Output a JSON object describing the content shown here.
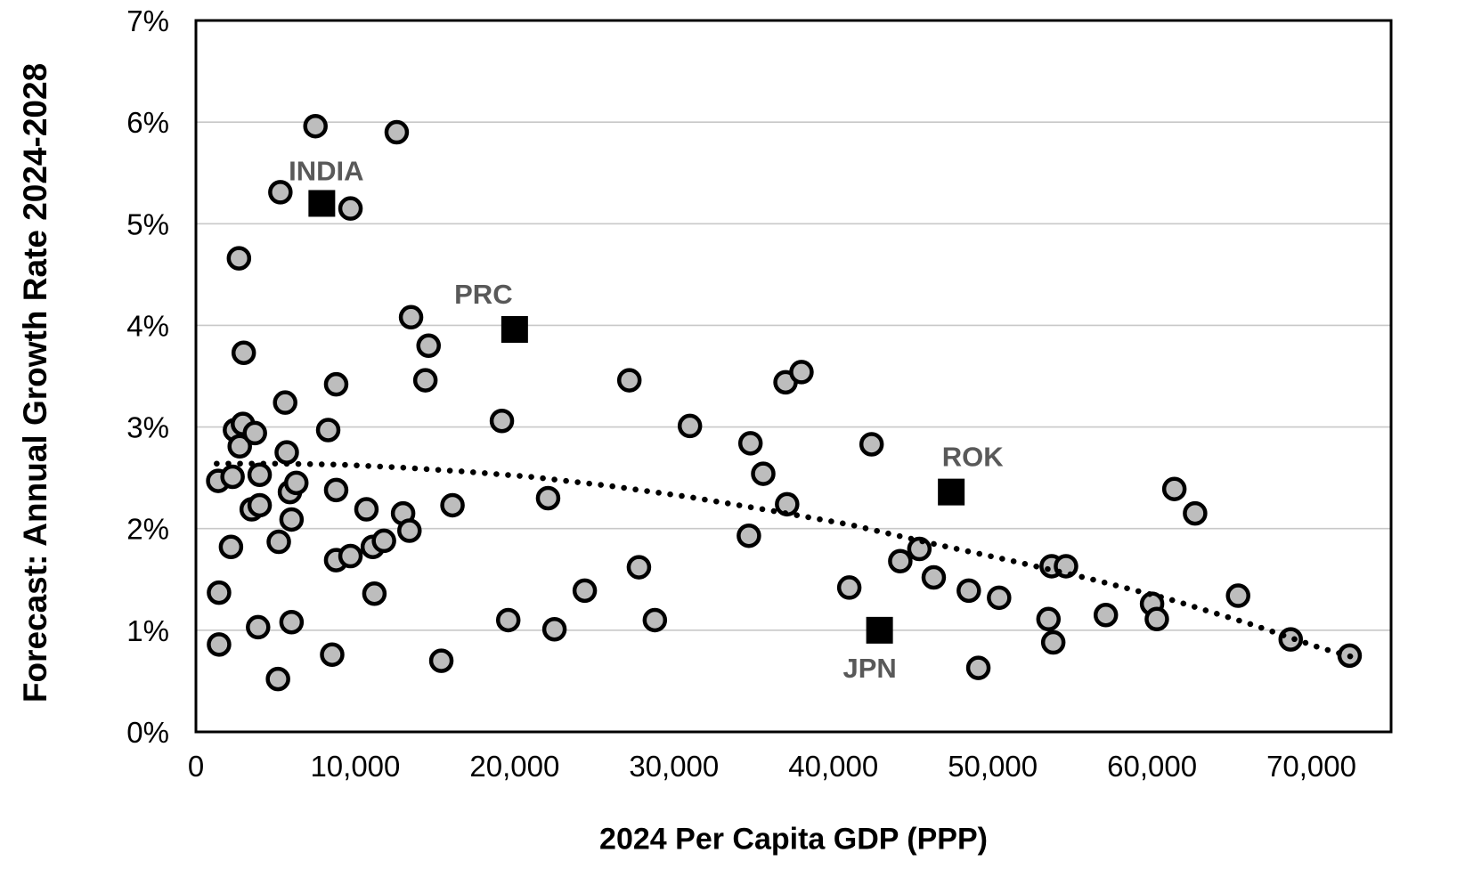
{
  "chart_data": {
    "type": "scatter",
    "title": "",
    "xlabel": "2024 Per Capita GDP (PPP)",
    "ylabel": "Forecast: Annual Growth Rate 2024-2028",
    "xlim": [
      0,
      75000
    ],
    "ylim": [
      0,
      7
    ],
    "grid": "horizontal-only",
    "legend": "none",
    "x_ticks": [
      {
        "value": 0,
        "label": "0"
      },
      {
        "value": 10000,
        "label": "10,000"
      },
      {
        "value": 20000,
        "label": "20,000"
      },
      {
        "value": 30000,
        "label": "30,000"
      },
      {
        "value": 40000,
        "label": "40,000"
      },
      {
        "value": 50000,
        "label": "50,000"
      },
      {
        "value": 60000,
        "label": "60,000"
      },
      {
        "value": 70000,
        "label": "70,000"
      }
    ],
    "y_ticks": [
      {
        "value": 0,
        "label": "0%"
      },
      {
        "value": 1,
        "label": "1%"
      },
      {
        "value": 2,
        "label": "2%"
      },
      {
        "value": 3,
        "label": "3%"
      },
      {
        "value": 4,
        "label": "4%"
      },
      {
        "value": 5,
        "label": "5%"
      },
      {
        "value": 6,
        "label": "6%"
      },
      {
        "value": 7,
        "label": "7%"
      }
    ],
    "series": [
      {
        "name": "economies",
        "marker": "circle",
        "fill": "#bdbdbd",
        "stroke": "#000000",
        "points": [
          [
            1400,
            2.47
          ],
          [
            1450,
            1.37
          ],
          [
            1450,
            0.86
          ],
          [
            2200,
            1.82
          ],
          [
            2300,
            2.51
          ],
          [
            2450,
            2.97
          ],
          [
            2700,
            4.66
          ],
          [
            2750,
            2.81
          ],
          [
            2950,
            3.03
          ],
          [
            3000,
            3.73
          ],
          [
            3500,
            2.19
          ],
          [
            3700,
            2.94
          ],
          [
            3900,
            1.03
          ],
          [
            4000,
            2.53
          ],
          [
            4000,
            2.23
          ],
          [
            5150,
            0.52
          ],
          [
            5200,
            1.87
          ],
          [
            5300,
            5.31
          ],
          [
            5600,
            3.24
          ],
          [
            5700,
            2.75
          ],
          [
            5900,
            2.36
          ],
          [
            6000,
            2.09
          ],
          [
            6000,
            1.08
          ],
          [
            6300,
            2.45
          ],
          [
            7500,
            5.96
          ],
          [
            8300,
            2.97
          ],
          [
            8550,
            0.76
          ],
          [
            8800,
            3.42
          ],
          [
            8800,
            2.38
          ],
          [
            8800,
            1.69
          ],
          [
            9700,
            5.15
          ],
          [
            9700,
            1.73
          ],
          [
            10700,
            2.19
          ],
          [
            11100,
            1.82
          ],
          [
            11200,
            1.36
          ],
          [
            11800,
            1.88
          ],
          [
            12600,
            5.9
          ],
          [
            13000,
            2.15
          ],
          [
            13400,
            1.98
          ],
          [
            13500,
            4.08
          ],
          [
            14400,
            3.46
          ],
          [
            14600,
            3.8
          ],
          [
            15400,
            0.7
          ],
          [
            16100,
            2.23
          ],
          [
            19200,
            3.06
          ],
          [
            19600,
            1.1
          ],
          [
            22100,
            2.3
          ],
          [
            22500,
            1.01
          ],
          [
            24400,
            1.39
          ],
          [
            27200,
            3.46
          ],
          [
            27800,
            1.62
          ],
          [
            28800,
            1.1
          ],
          [
            31000,
            3.01
          ],
          [
            34700,
            1.93
          ],
          [
            34800,
            2.84
          ],
          [
            35600,
            2.54
          ],
          [
            37000,
            3.44
          ],
          [
            37100,
            2.24
          ],
          [
            38000,
            3.54
          ],
          [
            41000,
            1.42
          ],
          [
            42400,
            2.83
          ],
          [
            44200,
            1.68
          ],
          [
            45400,
            1.8
          ],
          [
            46300,
            1.52
          ],
          [
            48500,
            1.39
          ],
          [
            49100,
            0.63
          ],
          [
            50400,
            1.32
          ],
          [
            53500,
            1.11
          ],
          [
            53700,
            1.63
          ],
          [
            53800,
            0.88
          ],
          [
            54600,
            1.63
          ],
          [
            57100,
            1.15
          ],
          [
            60000,
            1.26
          ],
          [
            60300,
            1.11
          ],
          [
            61400,
            2.39
          ],
          [
            62700,
            2.15
          ],
          [
            65400,
            1.34
          ],
          [
            68700,
            0.91
          ],
          [
            72400,
            0.75
          ]
        ]
      },
      {
        "name": "highlighted-economies",
        "marker": "square",
        "fill": "#000000",
        "label_color": "#595959",
        "points": [
          {
            "label": "INDIA",
            "gdp": 7900,
            "growth": 5.2,
            "label_offset": [
              5,
              -26
            ]
          },
          {
            "label": "PRC",
            "gdp": 20000,
            "growth": 3.96,
            "label_offset": [
              -35,
              -29
            ]
          },
          {
            "label": "ROK",
            "gdp": 47400,
            "growth": 2.36,
            "label_offset": [
              24,
              -29
            ]
          },
          {
            "label": "JPN",
            "gdp": 42900,
            "growth": 1.0,
            "label_offset": [
              -11,
              53
            ]
          }
        ]
      }
    ],
    "trendline": {
      "style": "dotted",
      "color": "#000000",
      "points": [
        [
          1300,
          2.64
        ],
        [
          5000,
          2.64
        ],
        [
          9000,
          2.63
        ],
        [
          13000,
          2.6
        ],
        [
          17000,
          2.56
        ],
        [
          21000,
          2.51
        ],
        [
          26000,
          2.42
        ],
        [
          31000,
          2.31
        ],
        [
          36000,
          2.18
        ],
        [
          41000,
          2.04
        ],
        [
          46000,
          1.86
        ],
        [
          51000,
          1.69
        ],
        [
          56000,
          1.51
        ],
        [
          61000,
          1.31
        ],
        [
          66000,
          1.07
        ],
        [
          70500,
          0.83
        ],
        [
          72500,
          0.74
        ]
      ]
    },
    "colors": {
      "plot_border": "#000000",
      "gridline": "#c8c8c8",
      "tick_label": "#000000",
      "axis_title": "#000000",
      "marker_fill": "#bdbdbd",
      "marker_stroke": "#000000",
      "highlight_fill": "#000000",
      "highlight_label": "#595959"
    }
  }
}
